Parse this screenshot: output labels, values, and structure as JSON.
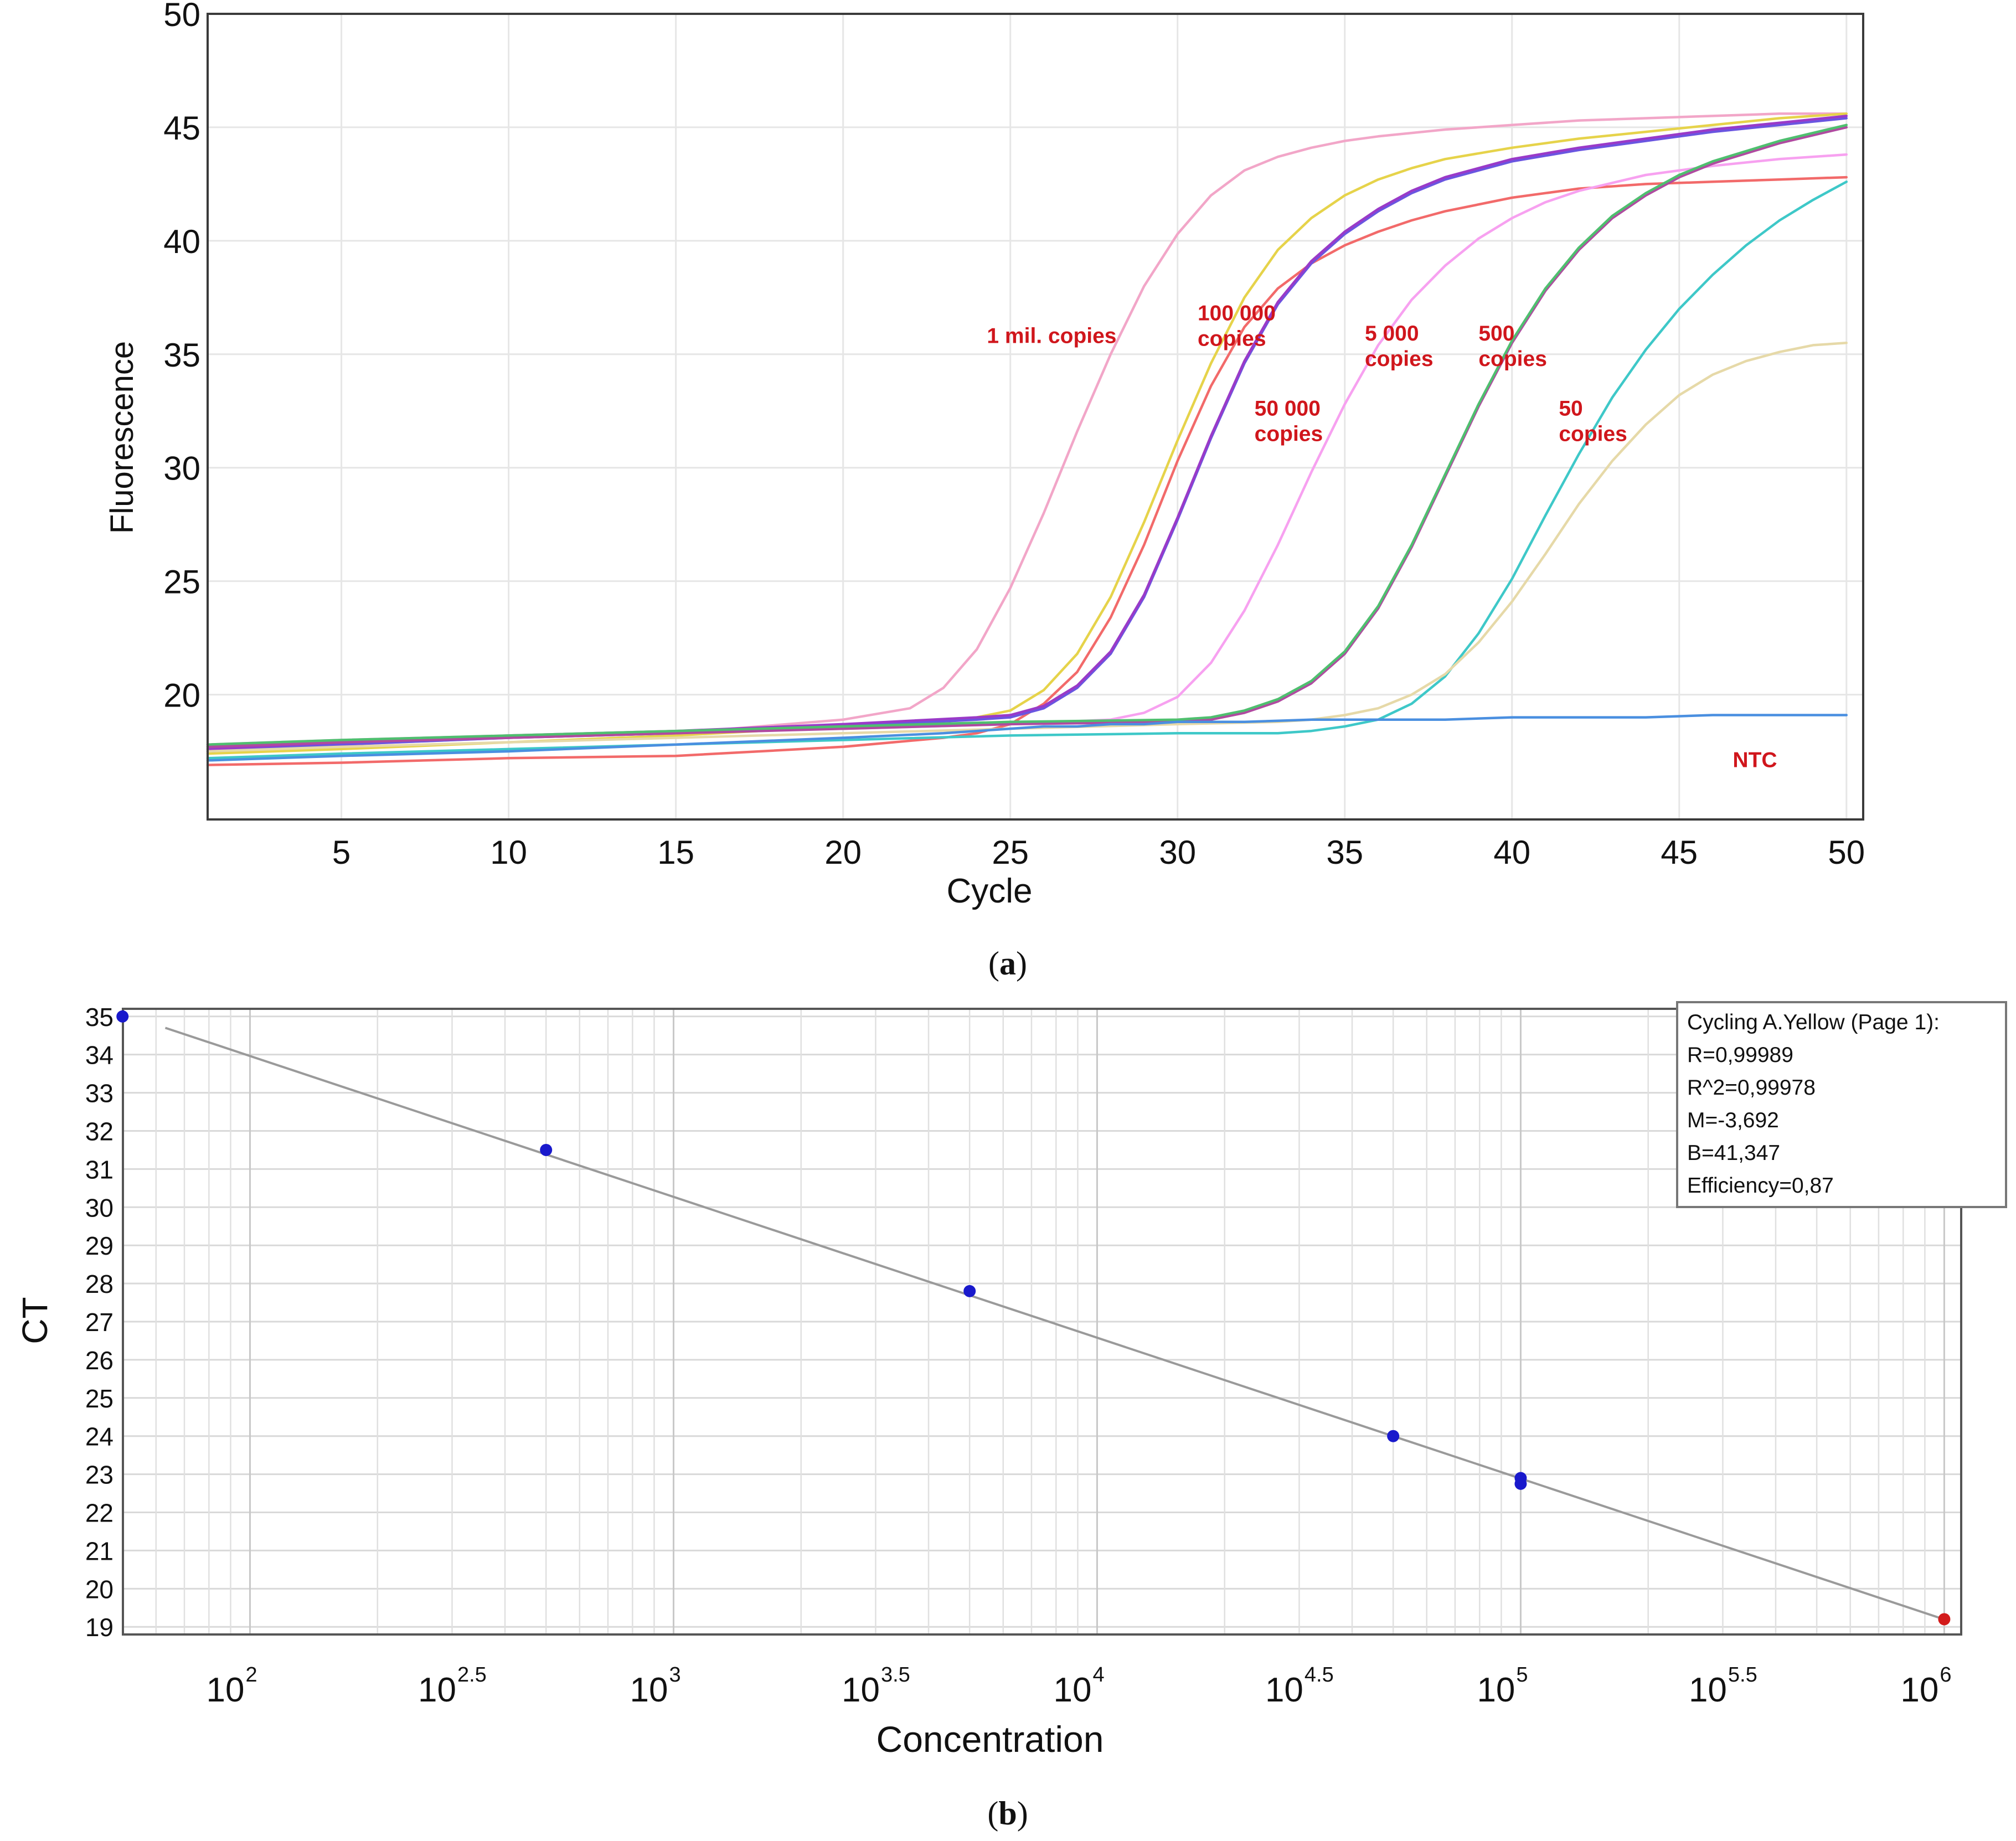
{
  "chart_data": [
    {
      "type": "line",
      "panel": "a",
      "xlabel": "Cycle",
      "ylabel": "Fluorescence",
      "xlim": [
        1,
        50.5
      ],
      "ylim": [
        14.5,
        50
      ],
      "xticks": [
        5,
        10,
        15,
        20,
        25,
        30,
        35,
        40,
        45,
        50
      ],
      "yticks": [
        20,
        25,
        30,
        35,
        40,
        45,
        50
      ],
      "grid": true,
      "annotation_color": "#d0161c",
      "annotations": [
        {
          "id": "1mil",
          "lines": [
            "1 mil. copies"
          ],
          "x": 24.3,
          "y": 35.5
        },
        {
          "id": "100000",
          "lines": [
            "100 000",
            "copies"
          ],
          "x": 30.6,
          "y": 36.5
        },
        {
          "id": "50000",
          "lines": [
            "50 000",
            "copies"
          ],
          "x": 32.3,
          "y": 32.3
        },
        {
          "id": "5000",
          "lines": [
            "5 000",
            "copies"
          ],
          "x": 35.6,
          "y": 35.6
        },
        {
          "id": "500",
          "lines": [
            "500",
            "copies"
          ],
          "x": 39.0,
          "y": 35.6
        },
        {
          "id": "50",
          "lines": [
            "50",
            "copies"
          ],
          "x": 41.4,
          "y": 32.3
        },
        {
          "id": "ntc",
          "lines": [
            "NTC"
          ],
          "x": 46.6,
          "y": 16.8
        }
      ],
      "series": [
        {
          "name": "1 mil. copies",
          "color": "#f2a6c8",
          "x": [
            1,
            5,
            10,
            15,
            20,
            22,
            23,
            24,
            25,
            26,
            27,
            28,
            29,
            30,
            31,
            32,
            33,
            34,
            35,
            36,
            38,
            40,
            42,
            44,
            46,
            48,
            50
          ],
          "y": [
            17.6,
            17.8,
            18.1,
            18.3,
            18.9,
            19.4,
            20.3,
            22.0,
            24.7,
            28.0,
            31.6,
            35.0,
            38.0,
            40.3,
            42.0,
            43.1,
            43.7,
            44.1,
            44.4,
            44.6,
            44.9,
            45.1,
            45.3,
            45.4,
            45.5,
            45.6,
            45.6
          ]
        },
        {
          "name": "100 000 copies (a)",
          "color": "#e6d34a",
          "x": [
            1,
            5,
            10,
            15,
            20,
            23,
            24,
            25,
            26,
            27,
            28,
            29,
            30,
            31,
            32,
            33,
            34,
            35,
            36,
            37,
            38,
            40,
            42,
            44,
            46,
            48,
            50
          ],
          "y": [
            17.4,
            17.6,
            17.9,
            18.2,
            18.6,
            18.9,
            19.0,
            19.3,
            20.2,
            21.8,
            24.3,
            27.6,
            31.2,
            34.6,
            37.5,
            39.6,
            41.0,
            42.0,
            42.7,
            43.2,
            43.6,
            44.1,
            44.5,
            44.8,
            45.1,
            45.4,
            45.6
          ]
        },
        {
          "name": "100 000 copies (b)",
          "color": "#f26a6a",
          "x": [
            1,
            5,
            10,
            15,
            20,
            23,
            24,
            25,
            26,
            27,
            28,
            29,
            30,
            31,
            32,
            33,
            34,
            35,
            36,
            37,
            38,
            40,
            42,
            44,
            46,
            48,
            50
          ],
          "y": [
            16.9,
            17.0,
            17.2,
            17.3,
            17.7,
            18.1,
            18.3,
            18.7,
            19.6,
            21.0,
            23.4,
            26.6,
            30.3,
            33.6,
            36.2,
            37.9,
            39.0,
            39.8,
            40.4,
            40.9,
            41.3,
            41.9,
            42.3,
            42.5,
            42.6,
            42.7,
            42.8
          ]
        },
        {
          "name": "50 000 copies (a)",
          "color": "#6a55e0",
          "x": [
            1,
            5,
            10,
            15,
            20,
            24,
            25,
            26,
            27,
            28,
            29,
            30,
            31,
            32,
            33,
            34,
            35,
            36,
            37,
            38,
            40,
            42,
            44,
            46,
            48,
            50
          ],
          "y": [
            17.5,
            17.8,
            18.1,
            18.3,
            18.6,
            18.9,
            19.0,
            19.4,
            20.3,
            21.8,
            24.3,
            27.7,
            31.3,
            34.6,
            37.2,
            39.0,
            40.3,
            41.3,
            42.1,
            42.7,
            43.5,
            44.0,
            44.4,
            44.8,
            45.1,
            45.4
          ]
        },
        {
          "name": "50 000 copies (b)",
          "color": "#9a3ac8",
          "x": [
            1,
            5,
            10,
            15,
            20,
            24,
            25,
            26,
            27,
            28,
            29,
            30,
            31,
            32,
            33,
            34,
            35,
            36,
            37,
            38,
            40,
            42,
            44,
            46,
            48,
            50
          ],
          "y": [
            17.6,
            17.9,
            18.2,
            18.4,
            18.7,
            19.0,
            19.1,
            19.5,
            20.4,
            21.9,
            24.4,
            27.8,
            31.4,
            34.7,
            37.3,
            39.1,
            40.4,
            41.4,
            42.2,
            42.8,
            43.6,
            44.1,
            44.5,
            44.9,
            45.2,
            45.5
          ]
        },
        {
          "name": "5 000 copies",
          "color": "#f7a1f0",
          "x": [
            1,
            5,
            10,
            15,
            20,
            25,
            28,
            29,
            30,
            31,
            32,
            33,
            34,
            35,
            36,
            37,
            38,
            39,
            40,
            41,
            42,
            44,
            46,
            48,
            50
          ],
          "y": [
            17.8,
            18.0,
            18.2,
            18.4,
            18.5,
            18.7,
            18.9,
            19.2,
            19.9,
            21.4,
            23.7,
            26.6,
            29.8,
            32.8,
            35.4,
            37.4,
            38.9,
            40.1,
            41.0,
            41.7,
            42.2,
            42.9,
            43.3,
            43.6,
            43.8
          ]
        },
        {
          "name": "500 copies (a)",
          "color": "#b04aa0",
          "x": [
            1,
            5,
            10,
            15,
            20,
            25,
            30,
            31,
            32,
            33,
            34,
            35,
            36,
            37,
            38,
            39,
            40,
            41,
            42,
            43,
            44,
            45,
            46,
            48,
            50
          ],
          "y": [
            17.7,
            17.9,
            18.1,
            18.3,
            18.5,
            18.7,
            18.8,
            18.9,
            19.2,
            19.7,
            20.5,
            21.8,
            23.8,
            26.5,
            29.6,
            32.7,
            35.5,
            37.8,
            39.6,
            41.0,
            42.0,
            42.8,
            43.4,
            44.3,
            45.0
          ]
        },
        {
          "name": "500 copies (b)",
          "color": "#4fbf6f",
          "x": [
            1,
            5,
            10,
            15,
            20,
            25,
            30,
            31,
            32,
            33,
            34,
            35,
            36,
            37,
            38,
            39,
            40,
            41,
            42,
            43,
            44,
            45,
            46,
            48,
            50
          ],
          "y": [
            17.8,
            18.0,
            18.2,
            18.4,
            18.6,
            18.8,
            18.9,
            19.0,
            19.3,
            19.8,
            20.6,
            21.9,
            23.9,
            26.6,
            29.7,
            32.8,
            35.6,
            37.9,
            39.7,
            41.1,
            42.1,
            42.9,
            43.5,
            44.4,
            45.1
          ]
        },
        {
          "name": "50 copies (a)",
          "color": "#3ec8c8",
          "x": [
            1,
            5,
            10,
            15,
            20,
            25,
            30,
            33,
            34,
            35,
            36,
            37,
            38,
            39,
            40,
            41,
            42,
            43,
            44,
            45,
            46,
            47,
            48,
            49,
            50
          ],
          "y": [
            17.2,
            17.4,
            17.6,
            17.8,
            18.0,
            18.2,
            18.3,
            18.3,
            18.4,
            18.6,
            18.9,
            19.6,
            20.8,
            22.7,
            25.1,
            27.9,
            30.6,
            33.1,
            35.2,
            37.0,
            38.5,
            39.8,
            40.9,
            41.8,
            42.6
          ]
        },
        {
          "name": "50 copies (b)",
          "color": "#e6d9a8",
          "x": [
            1,
            5,
            10,
            15,
            20,
            25,
            30,
            33,
            34,
            35,
            36,
            37,
            38,
            39,
            40,
            41,
            42,
            43,
            44,
            45,
            46,
            47,
            48,
            49,
            50
          ],
          "y": [
            17.5,
            17.7,
            17.9,
            18.1,
            18.3,
            18.5,
            18.7,
            18.8,
            18.9,
            19.1,
            19.4,
            20.0,
            20.9,
            22.3,
            24.1,
            26.2,
            28.4,
            30.3,
            31.9,
            33.2,
            34.1,
            34.7,
            35.1,
            35.4,
            35.5
          ]
        },
        {
          "name": "NTC",
          "color": "#4a8fe0",
          "x": [
            1,
            5,
            10,
            15,
            20,
            23,
            24,
            25,
            26,
            27,
            28,
            29,
            30,
            32,
            34,
            36,
            38,
            40,
            42,
            44,
            46,
            48,
            50
          ],
          "y": [
            17.1,
            17.3,
            17.5,
            17.8,
            18.1,
            18.3,
            18.4,
            18.5,
            18.6,
            18.6,
            18.7,
            18.7,
            18.8,
            18.8,
            18.9,
            18.9,
            18.9,
            19.0,
            19.0,
            19.0,
            19.1,
            19.1,
            19.1
          ]
        }
      ]
    },
    {
      "type": "scatter",
      "panel": "b",
      "xlabel": "Concentration",
      "ylabel": "CT",
      "xscale": "log10",
      "xlim": [
        1.7,
        6.04
      ],
      "ylim": [
        18.8,
        35.2
      ],
      "yticks": [
        19,
        20,
        21,
        22,
        23,
        24,
        25,
        26,
        27,
        28,
        29,
        30,
        31,
        32,
        33,
        34,
        35
      ],
      "xticks_log": [
        {
          "exp": "2",
          "value": 2
        },
        {
          "exp": "2.5",
          "value": 2.5
        },
        {
          "exp": "3",
          "value": 3
        },
        {
          "exp": "3.5",
          "value": 3.5
        },
        {
          "exp": "4",
          "value": 4
        },
        {
          "exp": "4.5",
          "value": 4.5
        },
        {
          "exp": "5",
          "value": 5
        },
        {
          "exp": "5.5",
          "value": 5.5
        },
        {
          "exp": "6",
          "value": 6
        }
      ],
      "tick_base": "10",
      "grid": true,
      "points": [
        {
          "log_conc": 1.699,
          "ct": 35.0,
          "color": "#1919cc"
        },
        {
          "log_conc": 2.699,
          "ct": 31.5,
          "color": "#1919cc"
        },
        {
          "log_conc": 3.699,
          "ct": 27.8,
          "color": "#1919cc"
        },
        {
          "log_conc": 4.699,
          "ct": 24.0,
          "color": "#1919cc"
        },
        {
          "log_conc": 5.0,
          "ct": 22.9,
          "color": "#1919cc"
        },
        {
          "log_conc": 5.0,
          "ct": 22.75,
          "color": "#1919cc"
        },
        {
          "log_conc": 6.0,
          "ct": 19.2,
          "color": "#d31b1b"
        }
      ],
      "fit_line": {
        "slope": -3.692,
        "intercept": 41.347,
        "x_start": 1.8,
        "x_end": 6.0,
        "color": "#9a9a9a"
      },
      "legend_lines": [
        "Cycling A.Yellow (Page 1):",
        "R=0,99989",
        "R^2=0,99978",
        "M=-3,692",
        "B=41,347",
        "Efficiency=0,87"
      ]
    }
  ],
  "captions": {
    "a": "a",
    "b": "b"
  }
}
